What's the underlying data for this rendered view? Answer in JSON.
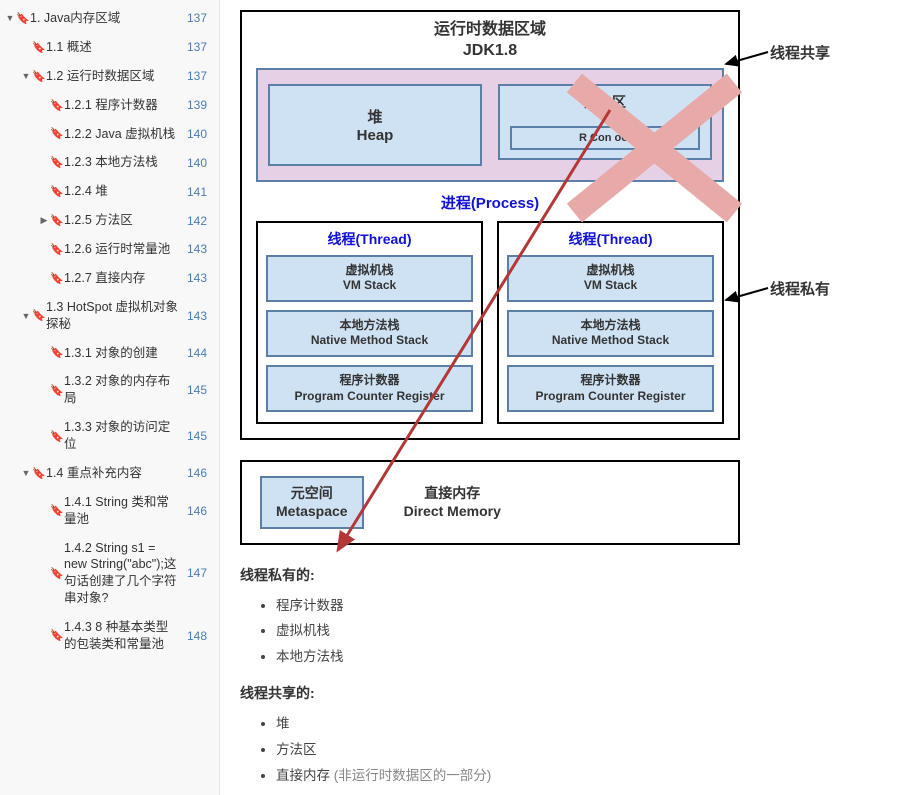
{
  "sidebar": {
    "items": [
      {
        "label": "1. Java内存区域",
        "page": "137",
        "indent": 0,
        "arrow": "▼"
      },
      {
        "label": "1.1 概述",
        "page": "137",
        "indent": 1,
        "arrow": ""
      },
      {
        "label": "1.2 运行时数据区域",
        "page": "137",
        "indent": 1,
        "arrow": "▼"
      },
      {
        "label": "1.2.1 程序计数器",
        "page": "139",
        "indent": 2,
        "arrow": ""
      },
      {
        "label": "1.2.2 Java 虚拟机栈",
        "page": "140",
        "indent": 2,
        "arrow": ""
      },
      {
        "label": "1.2.3 本地方法栈",
        "page": "140",
        "indent": 2,
        "arrow": ""
      },
      {
        "label": "1.2.4 堆",
        "page": "141",
        "indent": 2,
        "arrow": ""
      },
      {
        "label": "1.2.5 方法区",
        "page": "142",
        "indent": 2,
        "arrow": "▶"
      },
      {
        "label": "1.2.6 运行时常量池",
        "page": "143",
        "indent": 2,
        "arrow": ""
      },
      {
        "label": "1.2.7 直接内存",
        "page": "143",
        "indent": 2,
        "arrow": ""
      },
      {
        "label": "1.3 HotSpot 虚拟机对象探秘",
        "page": "143",
        "indent": 1,
        "arrow": "▼"
      },
      {
        "label": "1.3.1 对象的创建",
        "page": "144",
        "indent": 2,
        "arrow": ""
      },
      {
        "label": "1.3.2 对象的内存布局",
        "page": "145",
        "indent": 2,
        "arrow": ""
      },
      {
        "label": "1.3.3 对象的访问定位",
        "page": "145",
        "indent": 2,
        "arrow": ""
      },
      {
        "label": "1.4  重点补充内容",
        "page": "146",
        "indent": 1,
        "arrow": "▼"
      },
      {
        "label": "1.4.1 String 类和常量池",
        "page": "146",
        "indent": 2,
        "arrow": ""
      },
      {
        "label": "1.4.2 String s1 = new String(\"abc\");这句话创建了几个字符串对象?",
        "page": "147",
        "indent": 2,
        "arrow": ""
      },
      {
        "label": "1.4.3 8 种基本类型的包装类和常量池",
        "page": "148",
        "indent": 2,
        "arrow": ""
      }
    ]
  },
  "diagram": {
    "title1": "运行时数据区域",
    "title2": "JDK1.8",
    "heap_cn": "堆",
    "heap_en": "Heap",
    "method_cn": "方法区",
    "rt_pool": "R         Con           ool",
    "process": "进程(Process)",
    "thread": "线程(Thread)",
    "vm_cn": "虚拟机栈",
    "vm_en": "VM Stack",
    "nm_cn": "本地方法栈",
    "nm_en": "Native Method Stack",
    "pc_cn": "程序计数器",
    "pc_en": "Program Counter Register",
    "meta_cn": "元空间",
    "meta_en": "Metaspace",
    "dm_cn": "直接内存",
    "dm_en": "Direct Memory",
    "ext_shared": "线程共享",
    "ext_private": "线程私有",
    "colors": {
      "box_border": "#5b7fa6",
      "box_fill": "#cfe2f3",
      "shared_fill": "#e6d0e6",
      "cross": "#e8a9a9",
      "arrow": "#b23838",
      "process_color": "#1010d8"
    }
  },
  "content": {
    "h1": "线程私有的:",
    "list1": [
      "程序计数器",
      "虚拟机栈",
      "本地方法栈"
    ],
    "h2": "线程共享的:",
    "list2": [
      "堆",
      "方法区",
      "直接内存 (非运行时数据区的一部分)"
    ]
  }
}
